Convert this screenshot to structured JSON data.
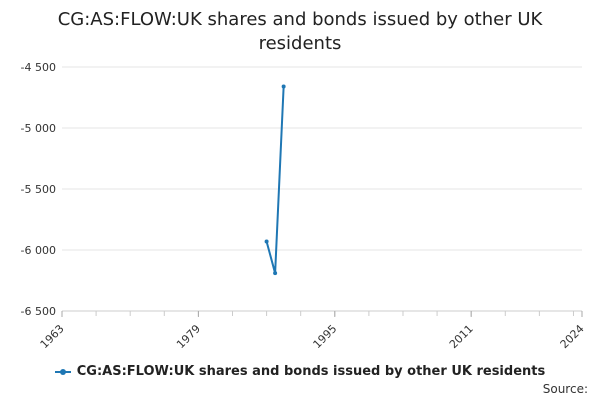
{
  "chart_data": {
    "type": "line",
    "title_lines": [
      "CG:AS:FLOW:UK shares and bonds issued by other UK",
      "residents"
    ],
    "xlabel": "",
    "ylabel": "",
    "x_ticks": [
      "1963",
      "1979",
      "1995",
      "2011",
      "2024"
    ],
    "y_ticks": [
      "-4 500",
      "-5 000",
      "-5 500",
      "-6 000",
      "-6 500"
    ],
    "xlim": [
      1963,
      2024
    ],
    "ylim": [
      -6500,
      -4500
    ],
    "grid": "horizontal",
    "legend_position": "bottom",
    "series": [
      {
        "name": "CG:AS:FLOW:UK shares and bonds issued by other UK residents",
        "color": "#1f77b4",
        "points": [
          {
            "x": 1987,
            "y": -5930
          },
          {
            "x": 1988,
            "y": -6190
          },
          {
            "x": 1989,
            "y": -4660
          }
        ]
      }
    ]
  },
  "footer": {
    "source_label": "Source:"
  }
}
